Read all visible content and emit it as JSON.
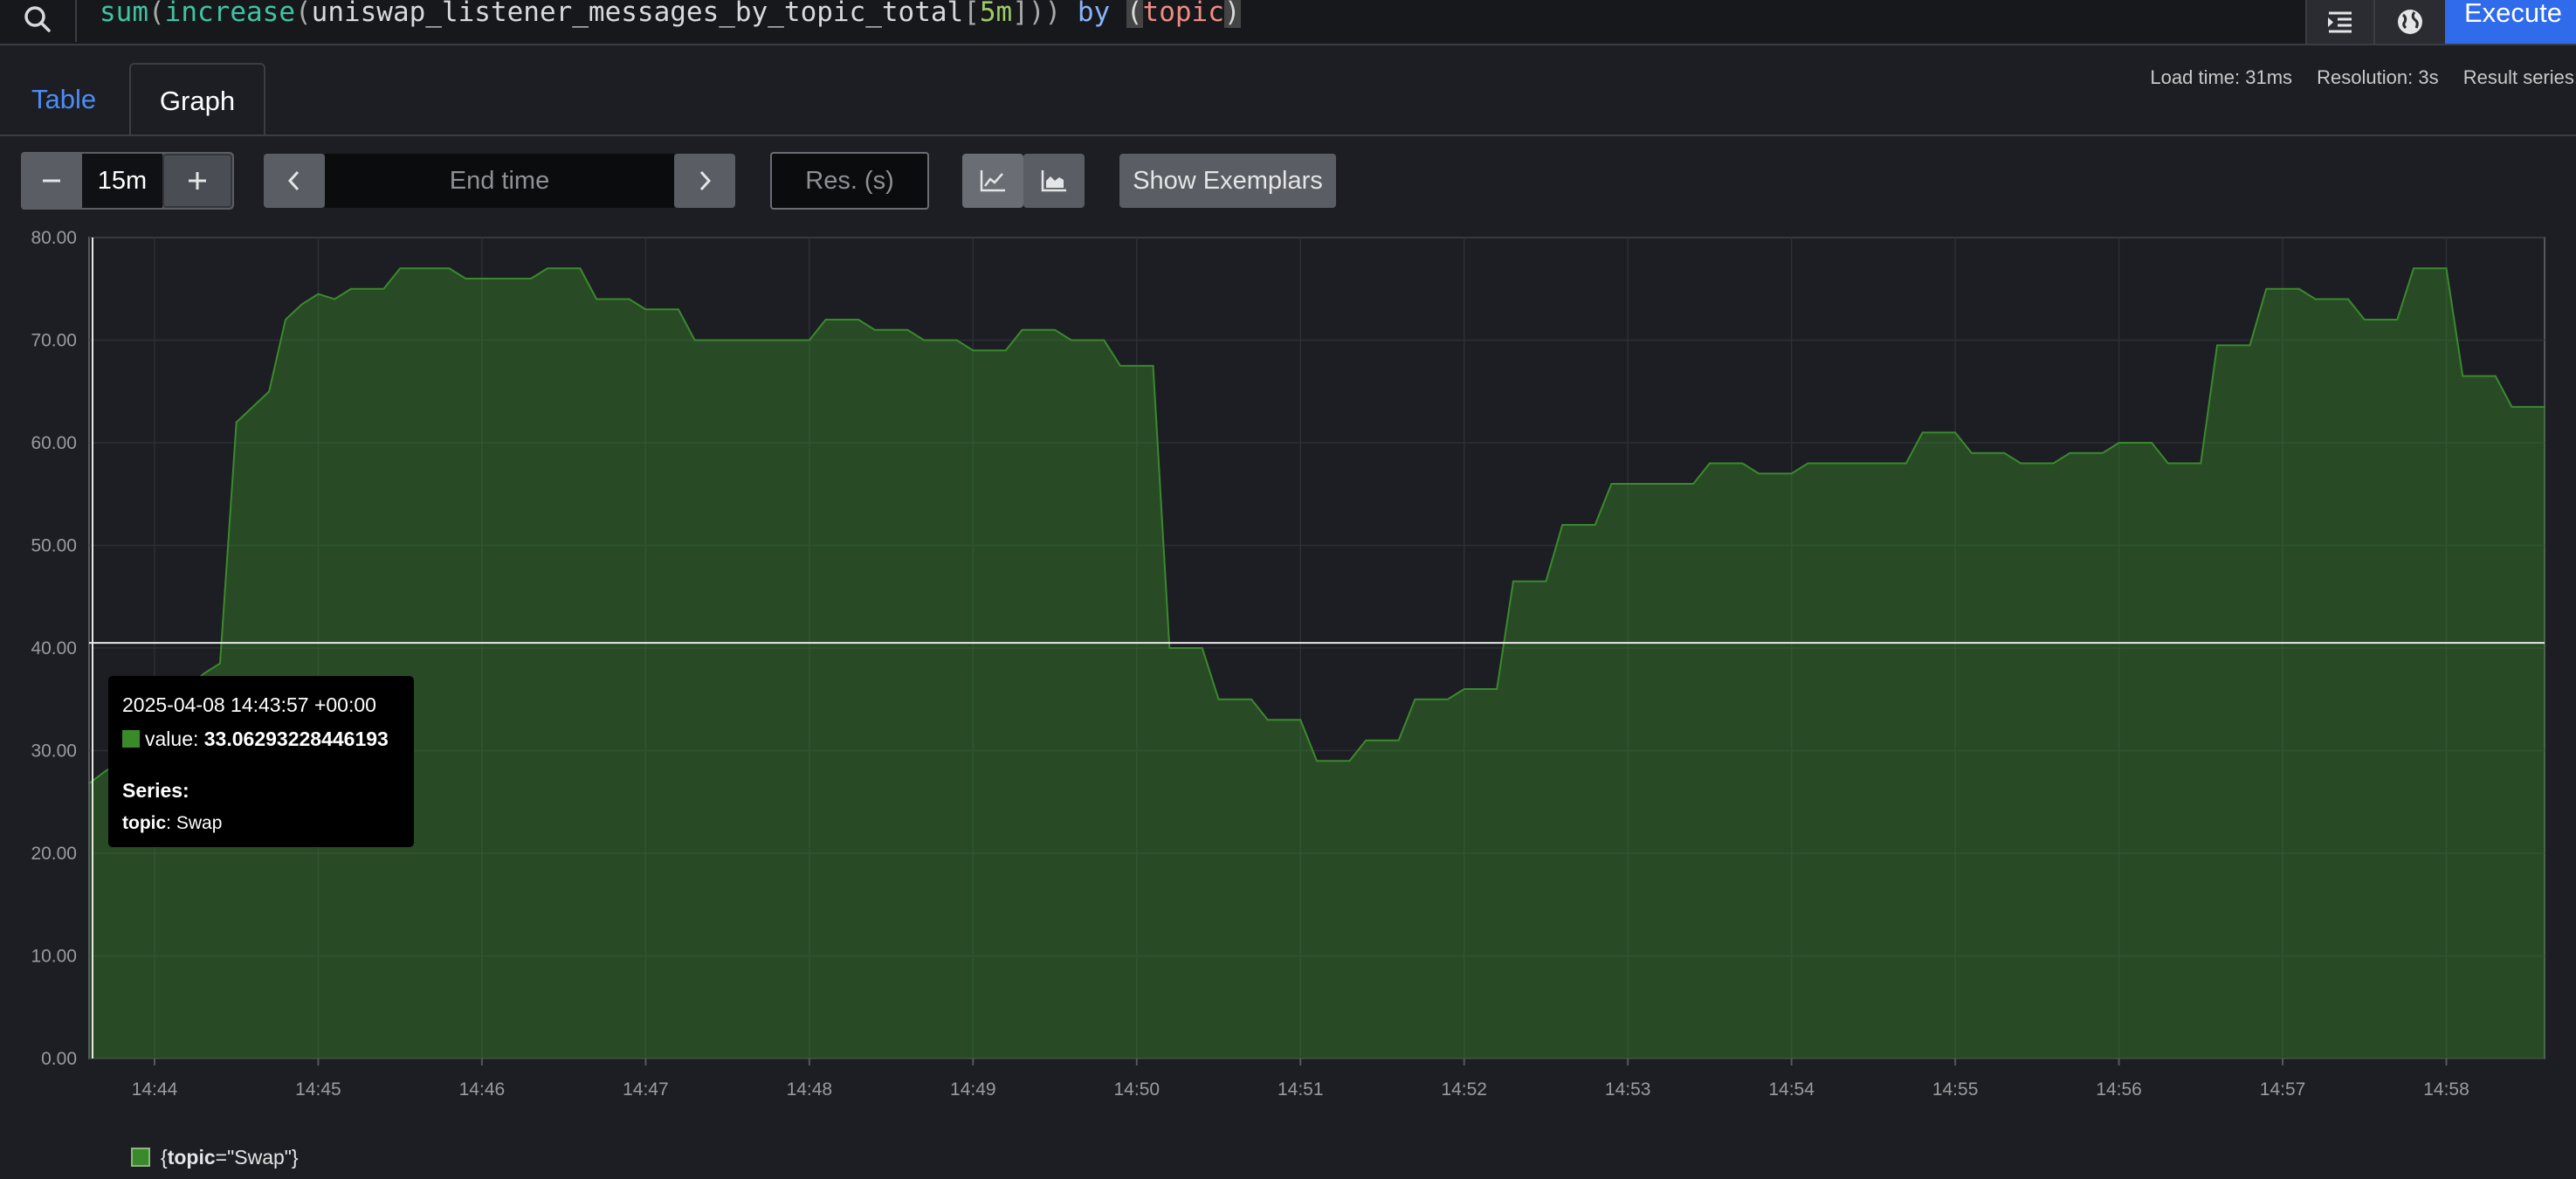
{
  "query": {
    "fn_sum": "sum",
    "paren1": "(",
    "fn_increase": "increase",
    "paren2": "(",
    "metric": "uniswap_listener_messages_by_topic_total",
    "bracket_open": "[",
    "duration": "5m",
    "bracket_close": "]))",
    "keyword_by": "by",
    "paren3": "(",
    "label": "topic",
    "paren4": ")"
  },
  "toolbar": {
    "execute_label": "Execute",
    "search_icon": "search-icon",
    "explain_icon": "list-indent-icon",
    "globe_icon": "globe-icon"
  },
  "tabs": [
    {
      "label": "Table",
      "active": false
    },
    {
      "label": "Graph",
      "active": true
    }
  ],
  "stats": {
    "load_time": "Load time: 31ms",
    "resolution": "Resolution: 3s",
    "result_series": "Result series:"
  },
  "controls": {
    "range_minus": "−",
    "range_value": "15m",
    "range_plus": "+",
    "end_time_placeholder": "End time",
    "res_placeholder": "Res. (s)",
    "show_exemplars": "Show Exemplars"
  },
  "tooltip": {
    "time": "2025-04-08 14:43:57 +00:00",
    "value_label": "value:",
    "value": "33.06293228446193",
    "series_title": "Series:",
    "label_key": "topic",
    "label_value": "Swap"
  },
  "legend": {
    "prefix": "{",
    "key": "topic",
    "rest": "=\"Swap\"}"
  },
  "colors": {
    "series": "#3a8a2c",
    "accent": "#2f6bea"
  },
  "chart_data": {
    "type": "area",
    "y_ticks": [
      "0.00",
      "10.00",
      "20.00",
      "30.00",
      "40.00",
      "50.00",
      "60.00",
      "70.00",
      "80.00"
    ],
    "x_ticks": [
      "14:44",
      "14:45",
      "14:46",
      "14:47",
      "14:48",
      "14:49",
      "14:50",
      "14:51",
      "14:52",
      "14:53",
      "14:54",
      "14:55",
      "14:56",
      "14:57",
      "14:58"
    ],
    "ylim": [
      0,
      80
    ],
    "xlim": [
      "14:43:36",
      "14:58:36"
    ],
    "grid": true,
    "series": [
      {
        "name": "{topic=\"Swap\"}",
        "points": [
          [
            "14:43:36",
            26.8
          ],
          [
            "14:43:42",
            28
          ],
          [
            "14:43:48",
            29
          ],
          [
            "14:43:54",
            31
          ],
          [
            "14:44:00",
            33
          ],
          [
            "14:44:06",
            35
          ],
          [
            "14:44:12",
            36
          ],
          [
            "14:44:18",
            37.5
          ],
          [
            "14:44:24",
            38.5
          ],
          [
            "14:44:30",
            62
          ],
          [
            "14:44:36",
            63.5
          ],
          [
            "14:44:42",
            65
          ],
          [
            "14:44:48",
            72
          ],
          [
            "14:44:54",
            73.5
          ],
          [
            "14:45:00",
            74.5
          ],
          [
            "14:45:06",
            74
          ],
          [
            "14:45:12",
            75
          ],
          [
            "14:45:18",
            75
          ],
          [
            "14:45:24",
            75
          ],
          [
            "14:45:30",
            77
          ],
          [
            "14:45:48",
            77
          ],
          [
            "14:45:54",
            76
          ],
          [
            "14:46:18",
            76
          ],
          [
            "14:46:24",
            77
          ],
          [
            "14:46:36",
            77
          ],
          [
            "14:46:42",
            74
          ],
          [
            "14:46:54",
            74
          ],
          [
            "14:47:00",
            73
          ],
          [
            "14:47:12",
            73
          ],
          [
            "14:47:18",
            70
          ],
          [
            "14:48:00",
            70
          ],
          [
            "14:48:06",
            72
          ],
          [
            "14:48:18",
            72
          ],
          [
            "14:48:24",
            71
          ],
          [
            "14:48:36",
            71
          ],
          [
            "14:48:42",
            70
          ],
          [
            "14:48:54",
            70
          ],
          [
            "14:49:00",
            69
          ],
          [
            "14:49:12",
            69
          ],
          [
            "14:49:18",
            71
          ],
          [
            "14:49:30",
            71
          ],
          [
            "14:49:36",
            70
          ],
          [
            "14:49:48",
            70
          ],
          [
            "14:49:54",
            67.5
          ],
          [
            "14:50:06",
            67.5
          ],
          [
            "14:50:12",
            40
          ],
          [
            "14:50:24",
            40
          ],
          [
            "14:50:30",
            35
          ],
          [
            "14:50:42",
            35
          ],
          [
            "14:50:48",
            33
          ],
          [
            "14:51:00",
            33
          ],
          [
            "14:51:06",
            29
          ],
          [
            "14:51:18",
            29
          ],
          [
            "14:51:24",
            31
          ],
          [
            "14:51:36",
            31
          ],
          [
            "14:51:42",
            35
          ],
          [
            "14:51:54",
            35
          ],
          [
            "14:52:00",
            36
          ],
          [
            "14:52:12",
            36
          ],
          [
            "14:52:18",
            46.5
          ],
          [
            "14:52:30",
            46.5
          ],
          [
            "14:52:36",
            52
          ],
          [
            "14:52:48",
            52
          ],
          [
            "14:52:54",
            56
          ],
          [
            "14:53:24",
            56
          ],
          [
            "14:53:30",
            58
          ],
          [
            "14:53:42",
            58
          ],
          [
            "14:53:48",
            57
          ],
          [
            "14:54:00",
            57
          ],
          [
            "14:54:06",
            58
          ],
          [
            "14:54:42",
            58
          ],
          [
            "14:54:48",
            61
          ],
          [
            "14:55:00",
            61
          ],
          [
            "14:55:06",
            59
          ],
          [
            "14:55:18",
            59
          ],
          [
            "14:55:24",
            58
          ],
          [
            "14:55:36",
            58
          ],
          [
            "14:55:42",
            59
          ],
          [
            "14:55:54",
            59
          ],
          [
            "14:56:00",
            60
          ],
          [
            "14:56:12",
            60
          ],
          [
            "14:56:18",
            58
          ],
          [
            "14:56:30",
            58
          ],
          [
            "14:56:36",
            69.5
          ],
          [
            "14:56:48",
            69.5
          ],
          [
            "14:56:54",
            75
          ],
          [
            "14:57:06",
            75
          ],
          [
            "14:57:12",
            74
          ],
          [
            "14:57:24",
            74
          ],
          [
            "14:57:30",
            72
          ],
          [
            "14:57:42",
            72
          ],
          [
            "14:57:48",
            77
          ],
          [
            "14:58:00",
            77
          ],
          [
            "14:58:06",
            66.5
          ],
          [
            "14:58:18",
            66.5
          ],
          [
            "14:58:24",
            63.5
          ],
          [
            "14:58:36",
            63.5
          ]
        ]
      }
    ],
    "crosshair_y": 40.5
  }
}
